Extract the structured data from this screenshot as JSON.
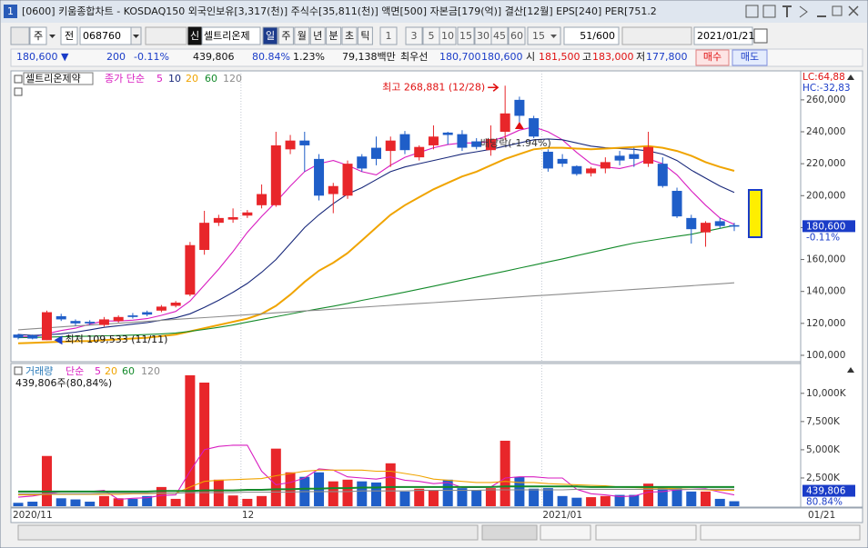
{
  "window": {
    "icon": "1",
    "title": "[0600] 키움종합차트 - KOSDAQ150 외국인보유[3,317(천)] 주식수[35,811(천)] 액면[500] 자본금[179(억)] 결산[12월] EPS[240] PER[751.2"
  },
  "toolbar": {
    "period": "주",
    "prev": "전",
    "code": "068760",
    "flag": "신",
    "name": "셀트리온제",
    "units": [
      "일",
      "주",
      "월",
      "년",
      "분",
      "초",
      "틱"
    ],
    "intervals": [
      "1",
      "3",
      "5",
      "10",
      "15",
      "30",
      "45",
      "60"
    ],
    "interval_select": "15",
    "count": "51/600",
    "date": "2021/01/21"
  },
  "quote": {
    "price": "180,600 ▼",
    "change": "200",
    "change_pct": "-0.11%",
    "volume": "439,806",
    "volume_ratio": "80.84%",
    "turnover": "1.23%",
    "amount": "79,138백만",
    "best_label": "최우선",
    "ask": "180,700",
    "bid": "180,600",
    "open_label": "시",
    "open": "181,500",
    "high_label": "고",
    "high": "183,000",
    "low_label": "저",
    "low": "177,800",
    "buy": "매수",
    "sell": "매도"
  },
  "chart_data": [
    {
      "type": "candlestick",
      "title": "셀트리온제약",
      "legend_label": "종가 단순",
      "categories": [
        "2020/11",
        null,
        null,
        null,
        null,
        null,
        null,
        null,
        null,
        null,
        null,
        null,
        null,
        null,
        null,
        null,
        "12",
        null,
        null,
        null,
        null,
        null,
        null,
        null,
        null,
        null,
        null,
        null,
        null,
        null,
        null,
        null,
        null,
        null,
        null,
        null,
        null,
        "2021/01",
        null,
        null,
        null,
        null,
        null,
        null,
        null,
        null,
        null,
        null,
        null,
        null,
        null
      ],
      "last_label": "01/21",
      "open": [
        113000,
        112500,
        109500,
        124500,
        121500,
        121000,
        119000,
        121500,
        125000,
        127000,
        128000,
        131000,
        138000,
        166000,
        183000,
        185000,
        187500,
        194000,
        194000,
        229000,
        234500,
        223000,
        201000,
        200000,
        224500,
        230000,
        228000,
        238500,
        224000,
        231500,
        239500,
        238500,
        234000,
        228500,
        240000,
        260000,
        248500,
        227500,
        223000,
        218500,
        214000,
        217000,
        225000,
        226000,
        220000,
        220000,
        203000,
        186000,
        177000,
        184000,
        181500
      ],
      "high": [
        113500,
        113000,
        128000,
        126000,
        122500,
        122000,
        124000,
        125000,
        126500,
        128000,
        131500,
        134000,
        171000,
        190500,
        188000,
        192000,
        191000,
        207000,
        240000,
        238000,
        240000,
        226000,
        208000,
        222000,
        226000,
        237000,
        237000,
        240500,
        231500,
        244000,
        240000,
        241000,
        236000,
        244000,
        268881,
        262000,
        250000,
        229000,
        226000,
        219000,
        218000,
        224000,
        228000,
        230000,
        240000,
        224000,
        205000,
        188000,
        184000,
        186000,
        183000
      ],
      "low": [
        110000,
        110000,
        109533,
        121500,
        118500,
        119000,
        118000,
        120500,
        123000,
        124500,
        127000,
        130000,
        137000,
        163000,
        181000,
        183000,
        186000,
        192000,
        193000,
        226000,
        215000,
        197000,
        189000,
        198000,
        215000,
        219000,
        218000,
        226000,
        222000,
        229000,
        232000,
        228000,
        229000,
        225000,
        235000,
        246000,
        236000,
        215000,
        218000,
        212500,
        212000,
        214000,
        219000,
        218000,
        218000,
        205000,
        186000,
        170000,
        168000,
        179500,
        177800
      ],
      "close": [
        111000,
        110500,
        127000,
        122500,
        120000,
        120000,
        122500,
        124000,
        124000,
        125500,
        130500,
        133000,
        169000,
        183000,
        186000,
        186500,
        189500,
        201000,
        231500,
        234500,
        231500,
        200000,
        206000,
        220000,
        217000,
        223000,
        234500,
        228500,
        230500,
        237000,
        238000,
        230000,
        230500,
        235500,
        251500,
        250000,
        237000,
        217000,
        220000,
        213500,
        217000,
        221000,
        222000,
        223000,
        230500,
        206000,
        187000,
        179000,
        183000,
        181000,
        180600
      ],
      "up_color": "#e8262a",
      "down_color": "#1f5ec8",
      "series": [
        {
          "name": "5",
          "color": "#d81cc0",
          "values": [
            112000,
            111500,
            113500,
            115500,
            117000,
            119500,
            121500,
            121500,
            122000,
            123000,
            125000,
            127500,
            134000,
            144000,
            154000,
            165000,
            177000,
            187000,
            196000,
            206000,
            215000,
            220000,
            222000,
            219000,
            215000,
            213000,
            219000,
            224000,
            227000,
            230000,
            232000,
            233000,
            233000,
            234000,
            237000,
            241000,
            243000,
            240000,
            235000,
            227000,
            220000,
            218000,
            217000,
            219000,
            223000,
            220000,
            213000,
            203000,
            194000,
            186000,
            182000
          ]
        },
        {
          "name": "10",
          "color": "#18287a",
          "values": [
            113000,
            112500,
            112800,
            113500,
            114500,
            116000,
            117500,
            118500,
            119500,
            120500,
            122000,
            123500,
            126000,
            130000,
            134500,
            139500,
            145000,
            152000,
            160000,
            170000,
            180000,
            188000,
            195000,
            201000,
            205000,
            210000,
            215000,
            218000,
            220000,
            222000,
            224000,
            226000,
            227500,
            229000,
            231000,
            233000,
            235000,
            235500,
            235000,
            233000,
            231000,
            230000,
            229500,
            229000,
            228000,
            226000,
            222000,
            216000,
            211000,
            206000,
            202000
          ]
        },
        {
          "name": "20",
          "color": "#f0a400",
          "values": [
            107500,
            107800,
            108200,
            108500,
            108800,
            109000,
            109500,
            110000,
            110500,
            111000,
            112000,
            113000,
            115000,
            117000,
            119000,
            121000,
            123000,
            126000,
            131000,
            138000,
            146000,
            153000,
            158000,
            164000,
            172000,
            180000,
            188000,
            194000,
            199000,
            204000,
            208000,
            212000,
            215000,
            219000,
            223000,
            226000,
            229000,
            230000,
            230000,
            229500,
            229000,
            229500,
            230000,
            230500,
            231000,
            230000,
            228000,
            225000,
            221000,
            218000,
            215500
          ]
        },
        {
          "name": "60",
          "color": "#138a2a",
          "values": [
            111000,
            111200,
            111400,
            111600,
            111800,
            112000,
            112200,
            112400,
            112700,
            113000,
            113400,
            114000,
            115000,
            116200,
            117500,
            119000,
            120800,
            122500,
            124200,
            125900,
            127600,
            129200,
            130800,
            132500,
            134400,
            136100,
            137800,
            139600,
            141400,
            143300,
            145200,
            147100,
            149000,
            150800,
            152700,
            154600,
            156500,
            158500,
            160400,
            162400,
            164400,
            166400,
            168400,
            170300,
            171700,
            173100,
            174500,
            175800,
            177600,
            179500,
            181300
          ]
        },
        {
          "name": "120",
          "color": "#8c8c8c",
          "values": [
            116000,
            116600,
            117200,
            117800,
            118400,
            118900,
            119500,
            120100,
            120700,
            121300,
            121900,
            122500,
            123100,
            123600,
            124200,
            124800,
            125400,
            126000,
            126600,
            127200,
            127800,
            128300,
            128900,
            129500,
            130100,
            130700,
            131300,
            131900,
            132500,
            133000,
            133600,
            134200,
            134800,
            135400,
            136000,
            136600,
            137200,
            137700,
            138300,
            138900,
            139500,
            140100,
            140700,
            141300,
            141900,
            142400,
            143000,
            143600,
            144200,
            144800,
            145400
          ]
        }
      ],
      "ylim": [
        96000,
        277000
      ],
      "yticks": [
        {
          "value": 100000,
          "label": "100,000"
        },
        {
          "value": 120000,
          "label": "120,000"
        },
        {
          "value": 140000,
          "label": "140,000"
        },
        {
          "value": 160000,
          "label": "160,000"
        },
        {
          "value": 180000,
          "label": "180,000"
        },
        {
          "value": 200000,
          "label": "200,000"
        },
        {
          "value": 220000,
          "label": "220,000"
        },
        {
          "value": 240000,
          "label": "240,000"
        },
        {
          "value": 260000,
          "label": "260,000"
        }
      ],
      "lc": "LC:64,88",
      "hc": "HC:-32,83",
      "current": {
        "value": 180600,
        "label": "180,600",
        "change": "-0.11%"
      },
      "annotations": [
        {
          "text": "최고 268,881 (12/28)",
          "value": 268881
        },
        {
          "text": "최저 109,533 (11/11)",
          "value": 109533
        },
        {
          "text": "배당락(-1.94%)"
        }
      ]
    },
    {
      "type": "bar",
      "title": "거래량",
      "legend_label": "단순",
      "subtitle": "439,806주(80,84%)",
      "values": [
        300,
        400,
        4450,
        700,
        600,
        400,
        900,
        700,
        650,
        900,
        1700,
        650,
        11600,
        10950,
        2350,
        950,
        650,
        900,
        5100,
        3000,
        2600,
        3000,
        2200,
        2350,
        2200,
        2100,
        3800,
        1300,
        1550,
        1400,
        2350,
        1600,
        1400,
        1600,
        5800,
        2600,
        1550,
        1600,
        900,
        750,
        800,
        900,
        1000,
        1000,
        2000,
        1600,
        1600,
        1300,
        1300,
        650,
        439.806
      ],
      "series": [
        {
          "name": "5",
          "color": "#d81cc0",
          "values": [
            800,
            900,
            1100,
            1300,
            1300,
            1300,
            1400,
            600,
            700,
            750,
            950,
            1000,
            3100,
            5000,
            5300,
            5400,
            5400,
            3100,
            1900,
            2100,
            2500,
            3300,
            3200,
            2600,
            2500,
            2400,
            2600,
            2300,
            2200,
            2000,
            2100,
            1650,
            1650,
            1700,
            2500,
            2600,
            2600,
            2500,
            2500,
            1500,
            1100,
            1000,
            850,
            900,
            1250,
            1300,
            1450,
            1500,
            1550,
            1250,
            1000
          ]
        },
        {
          "name": "20",
          "color": "#f0a400",
          "values": [
            1000,
            1000,
            1050,
            1050,
            1050,
            1050,
            1050,
            1050,
            1100,
            1100,
            1150,
            1150,
            1700,
            2200,
            2300,
            2350,
            2400,
            2450,
            2700,
            2900,
            3100,
            3200,
            3200,
            3200,
            3200,
            3100,
            3100,
            2900,
            2700,
            2400,
            2300,
            2200,
            2100,
            2100,
            2200,
            2100,
            2100,
            2000,
            1950,
            1900,
            1850,
            1800,
            1700,
            1650,
            1600,
            1600,
            1550,
            1500,
            1450,
            1400,
            1400
          ]
        },
        {
          "name": "60",
          "color": "#138a2a",
          "values": [
            1300,
            1300,
            1300,
            1300,
            1300,
            1300,
            1300,
            1300,
            1300,
            1300,
            1350,
            1350,
            1350,
            1400,
            1400,
            1400,
            1450,
            1450,
            1500,
            1500,
            1550,
            1550,
            1600,
            1600,
            1650,
            1650,
            1700,
            1700,
            1700,
            1700,
            1700,
            1700,
            1700,
            1700,
            1750,
            1750,
            1750,
            1750,
            1750,
            1750,
            1700,
            1700,
            1700,
            1700,
            1700,
            1700,
            1700,
            1700,
            1700,
            1700,
            1700
          ]
        },
        {
          "name": "120",
          "color": "#8c8c8c",
          "values": [
            1100,
            1100,
            1100,
            1100,
            1100,
            1100,
            1150,
            1150,
            1150,
            1150,
            1150,
            1150,
            1200,
            1200,
            1200,
            1200,
            1250,
            1250,
            1250,
            1250,
            1300,
            1300,
            1300,
            1300,
            1350,
            1350,
            1350,
            1350,
            1400,
            1400,
            1400,
            1400,
            1400,
            1450,
            1450,
            1450,
            1450,
            1450,
            1450,
            1500,
            1500,
            1500,
            1500,
            1500,
            1500,
            1500,
            1500,
            1500,
            1500,
            1500,
            1500
          ]
        }
      ],
      "ylim": [
        0,
        12400
      ],
      "yticks": [
        {
          "value": 2500,
          "label": "2,500K"
        },
        {
          "value": 5000,
          "label": "5,000K"
        },
        {
          "value": 7500,
          "label": "7,500K"
        },
        {
          "value": 10000,
          "label": "10,000K"
        }
      ],
      "current": {
        "value": 439.806,
        "label": "439,806",
        "ratio": "80.84%"
      }
    }
  ]
}
